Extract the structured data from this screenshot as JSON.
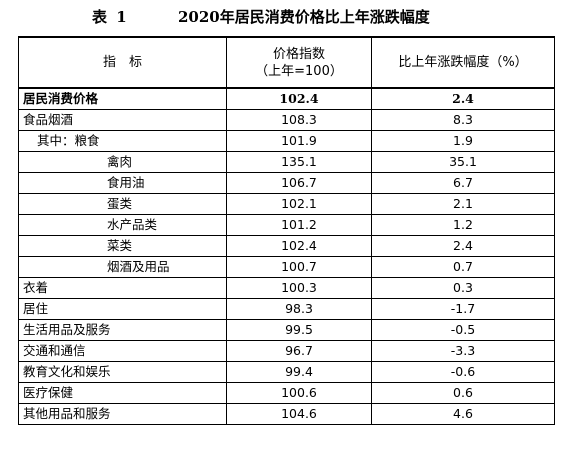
{
  "caption": {
    "label": "表 1",
    "title": "2020年居民消费价格比上年涨跌幅度"
  },
  "header": {
    "indicator": "指　标",
    "price_index_line1": "价格指数",
    "price_index_line2": "（上年=100）",
    "change": "比上年涨跌幅度（%）"
  },
  "rows": [
    {
      "name": "居民消费价格",
      "index": "102.4",
      "change": "2.4"
    },
    {
      "name": "食品烟酒",
      "index": "108.3",
      "change": "8.3"
    },
    {
      "name": "其中：粮食",
      "index": "101.9",
      "change": "1.9"
    },
    {
      "name": "禽肉",
      "index": "135.1",
      "change": "35.1"
    },
    {
      "name": "食用油",
      "index": "106.7",
      "change": "6.7"
    },
    {
      "name": "蛋类",
      "index": "102.1",
      "change": "2.1"
    },
    {
      "name": "水产品类",
      "index": "101.2",
      "change": "1.2"
    },
    {
      "name": "菜类",
      "index": "102.4",
      "change": "2.4"
    },
    {
      "name": "烟酒及用品",
      "index": "100.7",
      "change": "0.7"
    },
    {
      "name": "衣着",
      "index": "100.3",
      "change": "0.3"
    },
    {
      "name": "居住",
      "index": "98.3",
      "change": "-1.7"
    },
    {
      "name": "生活用品及服务",
      "index": "99.5",
      "change": "-0.5"
    },
    {
      "name": "交通和通信",
      "index": "96.7",
      "change": "-3.3"
    },
    {
      "name": "教育文化和娱乐",
      "index": "99.4",
      "change": "-0.6"
    },
    {
      "name": "医疗保健",
      "index": "100.6",
      "change": "0.6"
    },
    {
      "name": "其他用品和服务",
      "index": "104.6",
      "change": "4.6"
    }
  ]
}
